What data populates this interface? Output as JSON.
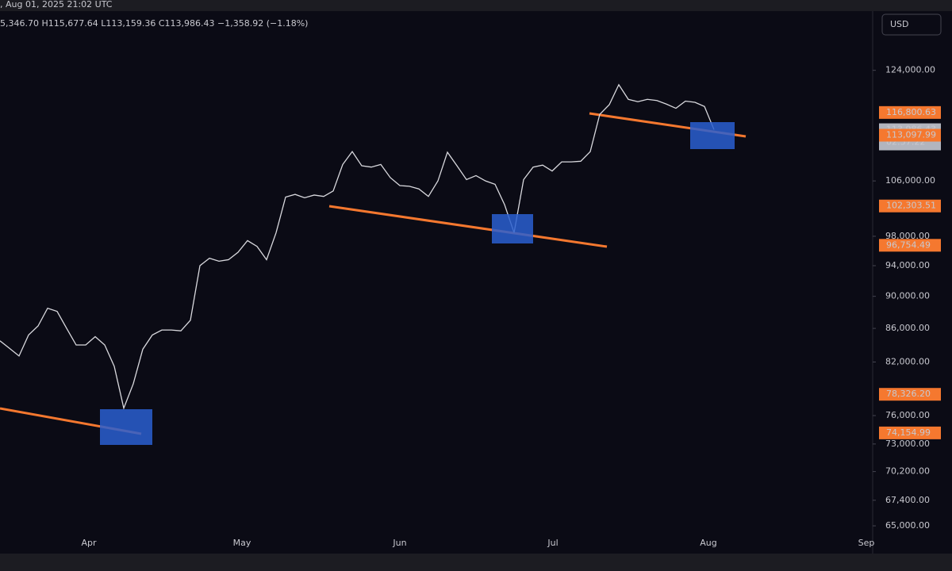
{
  "header": {
    "timestamp": ", Aug 01, 2025 21:02 UTC",
    "ohlc": "5,346.70  H115,677.64  L113,159.36  C113,986.43  −1,358.92 (−1.18%)",
    "currency_button": "USD"
  },
  "chart_data": {
    "type": "line",
    "color": "#d9d9de",
    "log_scale": true,
    "ylim": [
      64350,
      137000
    ],
    "yticks": [
      {
        "value": 124000,
        "label": "124,000.00"
      },
      {
        "value": 106000,
        "label": "106,000.00"
      },
      {
        "value": 98000,
        "label": "98,000.00"
      },
      {
        "value": 94000,
        "label": "94,000.00"
      },
      {
        "value": 90000,
        "label": "90,000.00"
      },
      {
        "value": 86000,
        "label": "86,000.00"
      },
      {
        "value": 82000,
        "label": "82,000.00"
      },
      {
        "value": 76000,
        "label": "76,000.00"
      },
      {
        "value": 73000,
        "label": "73,000.00"
      },
      {
        "value": 70200,
        "label": "70,200.00"
      },
      {
        "value": 67400,
        "label": "67,400.00"
      },
      {
        "value": 65000,
        "label": "65,000.00"
      }
    ],
    "x_labels": [
      "Apr",
      "May",
      "Jun",
      "Jul",
      "Aug",
      "Sep"
    ],
    "price_labels": [
      {
        "value": 116800.63,
        "label": "116,800.63",
        "color": "#f5782f"
      },
      {
        "value": 113986.43,
        "label": "113,986.43",
        "color": "#b2b5be"
      },
      {
        "value": 113097.99,
        "label": "113,097.99",
        "color": "#f5782f"
      },
      {
        "value": 102303.51,
        "label": "102,303.51",
        "color": "#f5782f"
      },
      {
        "value": 96754.49,
        "label": "96,754.49",
        "color": "#f5782f"
      },
      {
        "value": 78326.2,
        "label": "78,326.20",
        "color": "#f5782f"
      },
      {
        "value": 74154.99,
        "label": "74,154.99",
        "color": "#f5782f"
      }
    ],
    "countdown": "02:57:22",
    "values": [
      84500,
      83600,
      82700,
      85200,
      86300,
      88500,
      88100,
      86000,
      84000,
      84000,
      85000,
      84000,
      81500,
      76800,
      79500,
      83500,
      85200,
      85800,
      85800,
      85700,
      87000,
      94000,
      95000,
      94600,
      94800,
      95800,
      97400,
      96600,
      94800,
      98500,
      103600,
      104000,
      103500,
      103900,
      103700,
      104500,
      108500,
      110500,
      108300,
      108100,
      108500,
      106500,
      105300,
      105200,
      104800,
      103700,
      106000,
      110400,
      108300,
      106200,
      106800,
      106000,
      105500,
      102500,
      98500,
      106200,
      108100,
      108400,
      107500,
      108900,
      108900,
      109000,
      110500,
      116500,
      118100,
      121500,
      119000,
      118600,
      119000,
      118800,
      118200,
      117500,
      118700,
      118500,
      117800,
      114000
    ]
  }
}
